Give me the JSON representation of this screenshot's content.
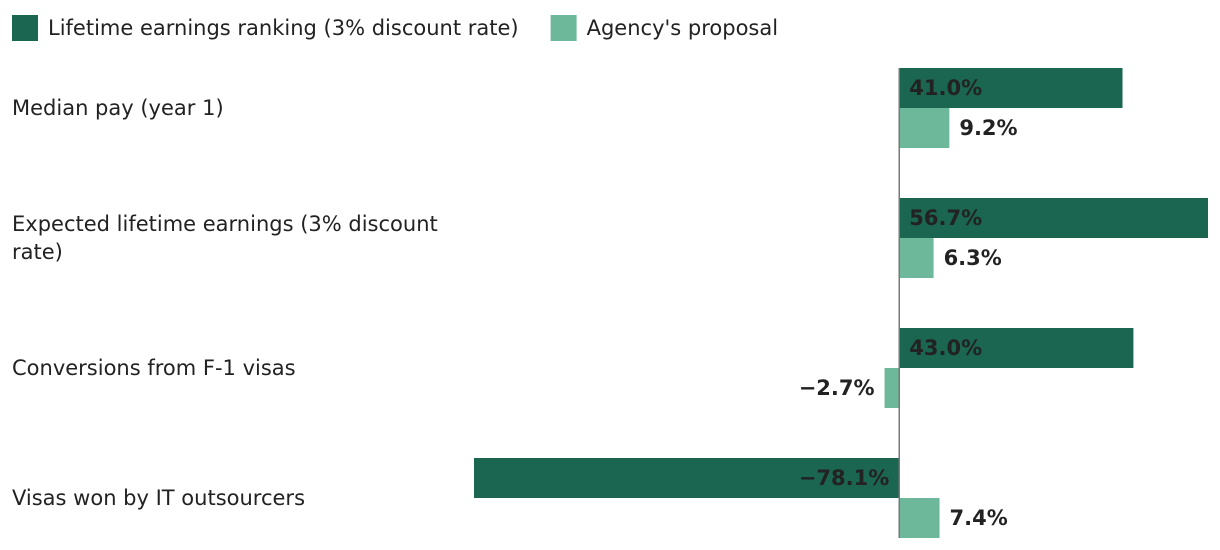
{
  "chart_data": {
    "type": "bar",
    "orientation": "horizontal",
    "categories": [
      "Median pay (year 1)",
      "Expected lifetime earnings (3% discount rate)",
      "Conversions from F-1 visas",
      "Visas won by IT outsourcers"
    ],
    "series": [
      {
        "name": "Lifetime earnings ranking (3% discount rate)",
        "color": "#1b6650",
        "values": [
          41.0,
          56.7,
          43.0,
          -78.1
        ],
        "value_labels": [
          "41.0%",
          "56.7%",
          "43.0%",
          "−78.1%"
        ]
      },
      {
        "name": "Agency's proposal",
        "color": "#6db89a",
        "values": [
          9.2,
          6.3,
          -2.7,
          7.4
        ],
        "value_labels": [
          "9.2%",
          "6.3%",
          "−2.7%",
          "7.4%"
        ]
      }
    ]
  }
}
